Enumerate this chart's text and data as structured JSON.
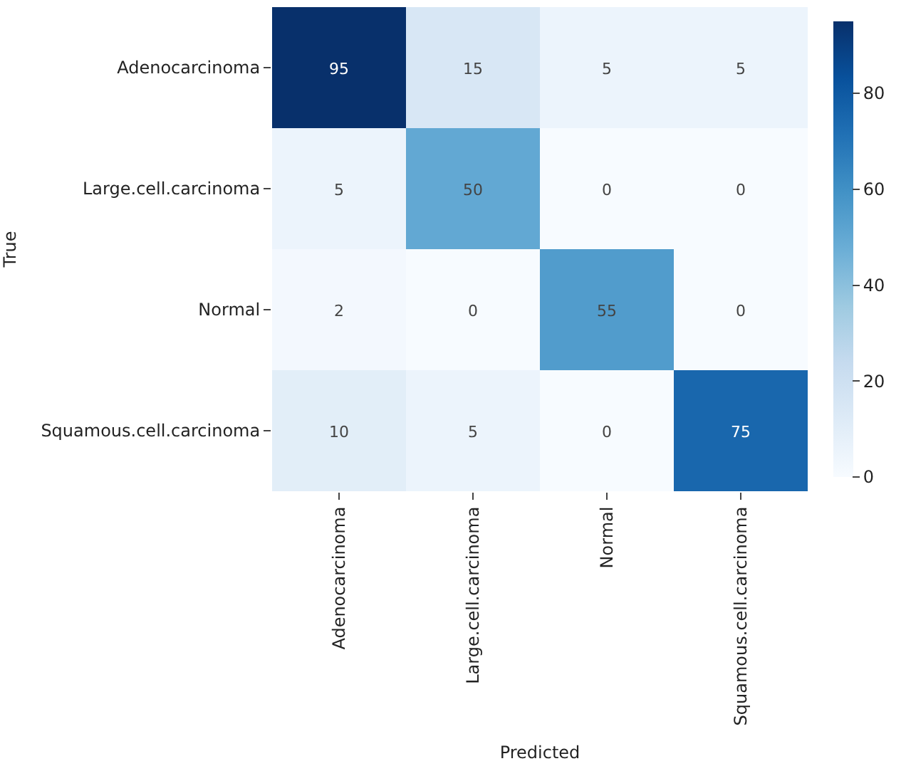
{
  "chart_data": {
    "type": "heatmap",
    "xlabel": "Predicted",
    "ylabel": "True",
    "categories": [
      "Adenocarcinoma",
      "Large.cell.carcinoma",
      "Normal",
      "Squamous.cell.carcinoma"
    ],
    "y_categories": [
      "Adenocarcinoma",
      "Large.cell.carcinoma",
      "Normal",
      "Squamous.cell.carcinoma"
    ],
    "cells": [
      [
        95,
        15,
        5,
        5
      ],
      [
        5,
        50,
        0,
        0
      ],
      [
        2,
        0,
        55,
        0
      ],
      [
        10,
        5,
        0,
        75
      ]
    ],
    "clim": [
      0,
      95
    ],
    "cticks": [
      0,
      20,
      40,
      60,
      80
    ],
    "data_labels": true
  }
}
